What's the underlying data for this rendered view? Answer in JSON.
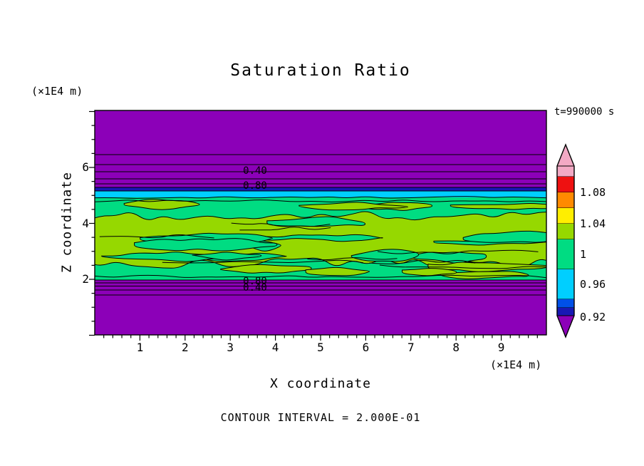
{
  "figure": {
    "title": "Saturation Ratio",
    "time_annotation": "t=990000 s",
    "footer_annotation": "CONTOUR INTERVAL = 2.000E-01",
    "x_axis": {
      "label": "X coordinate",
      "units": "(×1E4 m)"
    },
    "y_axis": {
      "label": "Z coordinate",
      "units": "(×1E4 m)"
    },
    "contour_labels": {
      "upper": [
        "0.40",
        "0.80"
      ],
      "lower": [
        "0.80",
        "0.40"
      ]
    }
  },
  "chart_data": {
    "type": "contour",
    "title": "Saturation Ratio",
    "xlabel": "X coordinate",
    "ylabel": "Z coordinate",
    "x_units_multiplier": "(×1E4 m)",
    "y_units_multiplier": "(×1E4 m)",
    "x_ticks": [
      1,
      2,
      3,
      4,
      5,
      6,
      7,
      8,
      9
    ],
    "y_ticks": [
      6,
      4,
      2
    ],
    "x_range": [
      0,
      10
    ],
    "y_range": [
      0,
      8
    ],
    "time": "t=990000 s",
    "contour_interval": 0.2,
    "labeled_contour_values": [
      0.4,
      0.8
    ],
    "colorbar": {
      "tick_labels": [
        "1.08",
        "1.04",
        "1",
        "0.96",
        "0.92"
      ],
      "segments_top_to_bottom": [
        {
          "color": "#F2A9C4",
          "approx_range": ">1.10"
        },
        {
          "color": "#EE1111",
          "approx_range": "1.08-1.10"
        },
        {
          "color": "#FF8A00",
          "approx_range": "1.06-1.08"
        },
        {
          "color": "#FFEE00",
          "approx_range": "1.04-1.06"
        },
        {
          "color": "#96D800",
          "approx_range": "1.02-1.04"
        },
        {
          "color": "#00DC82",
          "approx_range": "0.98-1.02"
        },
        {
          "color": "#00CFFF",
          "approx_range": "0.95-0.98"
        },
        {
          "color": "#0050E8",
          "approx_range": "0.93-0.95"
        },
        {
          "color": "#1818B4",
          "approx_range": "0.92-0.93"
        },
        {
          "color": "#8C00B8",
          "approx_range": "<0.92"
        }
      ]
    },
    "field_description": [
      {
        "band": "upper region (z ≈ 5.3–7.5 ×1E4 m)",
        "value": "subsaturated; contours 0.2→0.8 stacked toward cloud top, labels 0.40 and 0.80",
        "color": "#8C00B8"
      },
      {
        "band": "cloud-top transition (z ≈ 5.1–5.3)",
        "value": "S ≈ 0.92–0.98 thin dark-blue and cyan band",
        "color": "#1818B4 / #00CFFF"
      },
      {
        "band": "cloud layer (z ≈ 2.1–5.1)",
        "value": "S ≈ 0.98–1.04 mottled near-saturation structure (green / yellow-green blobs)",
        "color": "#00DC82 / #96D800"
      },
      {
        "band": "lower region (z ≈ 0–2.1)",
        "value": "subsaturated; contours 0.8→0.4 stacked below cloud base, labels 0.80 and 0.40",
        "color": "#8C00B8"
      }
    ],
    "colors": {
      "background": "#FFFFFF",
      "field_low": "#8C00B8",
      "dark_blue": "#1818B4",
      "cyan": "#00CFFF",
      "green": "#00DC82",
      "yellow_green": "#96D800",
      "contour_line": "#000000"
    }
  }
}
